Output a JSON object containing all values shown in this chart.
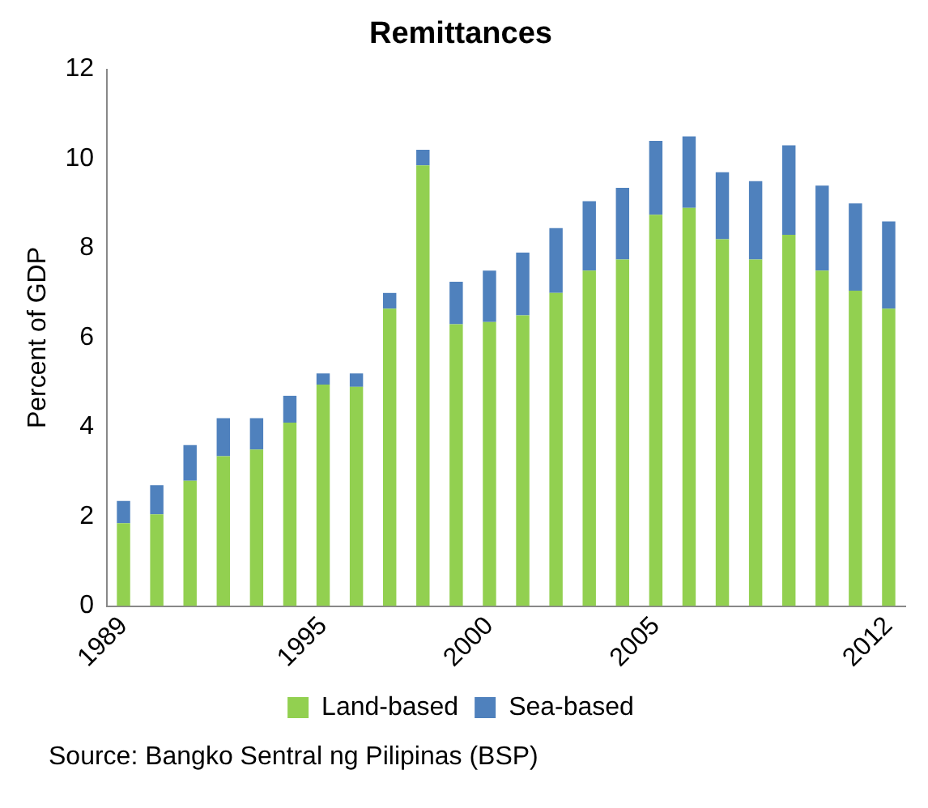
{
  "chart_data": {
    "type": "bar",
    "title": "Remittances",
    "ylabel": "Percent of GDP",
    "stacked": true,
    "categories": [
      "1989",
      null,
      null,
      null,
      null,
      null,
      "1995",
      null,
      null,
      null,
      null,
      "2000",
      null,
      null,
      null,
      null,
      "2005",
      null,
      null,
      null,
      null,
      null,
      null,
      "2012"
    ],
    "series": [
      {
        "name": "Land-based",
        "color": "#92d050",
        "values": [
          1.85,
          2.05,
          2.8,
          3.35,
          3.5,
          4.1,
          4.95,
          4.9,
          6.65,
          9.85,
          6.3,
          6.35,
          6.5,
          7.0,
          7.5,
          7.75,
          8.75,
          8.9,
          8.2,
          7.75,
          8.3,
          7.5,
          7.05,
          6.65
        ]
      },
      {
        "name": "Sea-based",
        "color": "#4f81bd",
        "values": [
          0.5,
          0.65,
          0.8,
          0.85,
          0.7,
          0.6,
          0.25,
          0.3,
          0.35,
          0.35,
          0.95,
          1.15,
          1.4,
          1.45,
          1.55,
          1.6,
          1.65,
          1.6,
          1.5,
          1.75,
          2.0,
          1.9,
          1.95,
          1.95
        ]
      }
    ],
    "ylim": [
      0,
      12
    ],
    "yticks": [
      0,
      2,
      4,
      6,
      8,
      10,
      12
    ],
    "grid": false,
    "legend": "bottom",
    "annotations": [
      "Source: Bangko Sentral ng Pilipinas (BSP)"
    ]
  }
}
